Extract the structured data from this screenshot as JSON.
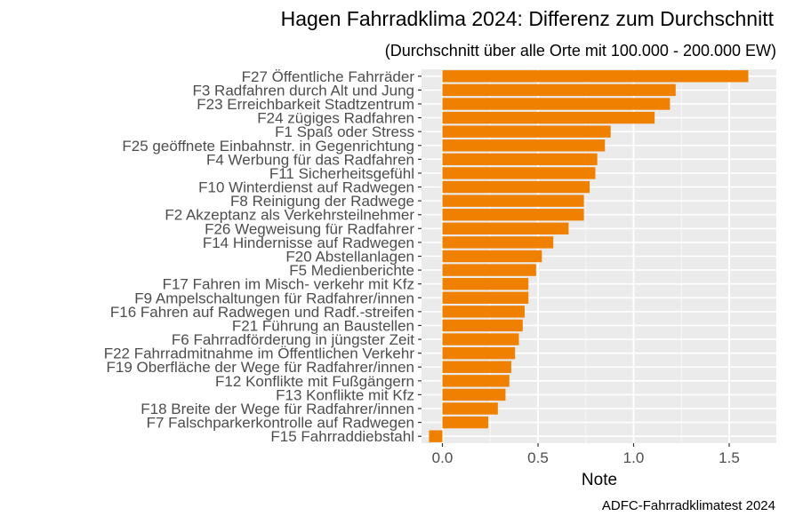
{
  "chart_data": {
    "type": "bar",
    "orientation": "horizontal",
    "title": "Hagen Fahrradklima 2024: Differenz zum Durchschnitt",
    "subtitle": "(Durchschnitt über alle Orte mit 100.000 - 200.000 EW)",
    "xlabel": "Note",
    "ylabel": "",
    "caption": "ADFC-Fahrradklimatest 2024",
    "xlim": [
      -0.07,
      1.65
    ],
    "xticks": [
      0.0,
      0.5,
      1.0,
      1.5
    ],
    "xtick_labels": [
      "0.0",
      "0.5",
      "1.0",
      "1.5"
    ],
    "grid": true,
    "bar_color": "#f08000",
    "panel_color": "#ebebeb",
    "categories": [
      "F27 Öffentliche Fahrräder",
      "F3 Radfahren durch Alt und Jung",
      "F23 Erreichbarkeit Stadtzentrum",
      "F24 zügiges Radfahren",
      "F1 Spaß oder Stress",
      "F25 geöffnete Einbahnstr. in Gegenrichtung",
      "F4 Werbung für das Radfahren",
      "F11 Sicherheitsgefühl",
      "F10 Winterdienst auf Radwegen",
      "F8 Reinigung der Radwege",
      "F2 Akzeptanz als Verkehrsteilnehmer",
      "F26 Wegweisung für Radfahrer",
      "F14 Hindernisse auf Radwegen",
      "F20 Abstellanlagen",
      "F5 Medienberichte",
      "F17 Fahren im Misch- verkehr mit Kfz",
      "F9 Ampelschaltungen für Radfahrer/innen",
      "F16 Fahren auf Radwegen und Radf.-streifen",
      "F21 Führung an Baustellen",
      "F6 Fahrradförderung in jüngster Zeit",
      "F22 Fahrradmitnahme im Öffentlichen Verkehr",
      "F19 Oberfläche der Wege für Radfahrer/innen",
      "F12 Konflikte mit Fußgängern",
      "F13 Konflikte mit Kfz",
      "F18 Breite der Wege für Radfahrer/innen",
      "F7 Falschparkerkontrolle auf Radwegen",
      "F15 Fahrraddiebstahl"
    ],
    "values": [
      1.6,
      1.22,
      1.19,
      1.11,
      0.88,
      0.85,
      0.81,
      0.8,
      0.77,
      0.74,
      0.74,
      0.66,
      0.58,
      0.52,
      0.49,
      0.45,
      0.45,
      0.43,
      0.42,
      0.4,
      0.38,
      0.36,
      0.35,
      0.33,
      0.29,
      0.24,
      -0.07
    ]
  }
}
